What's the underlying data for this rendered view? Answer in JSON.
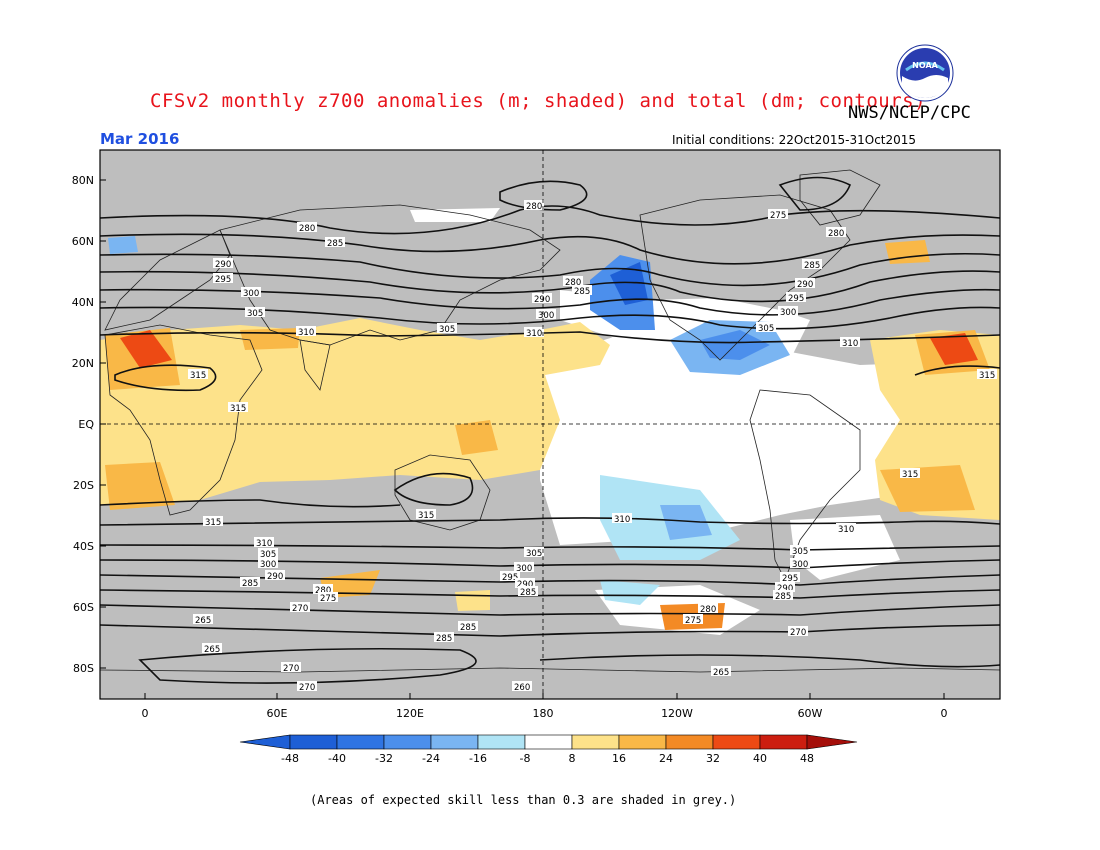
{
  "header": {
    "title": "CFSv2 monthly z700 anomalies (m; shaded) and total (dm; contours)",
    "org": "NWS/NCEP/CPC",
    "month": "Mar 2016",
    "init": "Initial conditions: 22Oct2015-31Oct2015",
    "logo_text": "NOAA"
  },
  "axes": {
    "lat_labels": [
      "80N",
      "60N",
      "40N",
      "20N",
      "EQ",
      "20S",
      "40S",
      "60S",
      "80S"
    ],
    "lon_labels": [
      "0",
      "60E",
      "120E",
      "180",
      "120W",
      "60W",
      "0"
    ]
  },
  "colorbar": {
    "labels": [
      "-48",
      "-40",
      "-32",
      "-24",
      "-16",
      "-8",
      "8",
      "16",
      "24",
      "32",
      "40",
      "48"
    ],
    "colors": [
      "#1e5fd6",
      "#2f74e3",
      "#4c8fec",
      "#7ab5f2",
      "#b0e4f5",
      "#ffffff",
      "#fde28a",
      "#f9b847",
      "#f38a25",
      "#ed4a14",
      "#cc1e10",
      "#a50f0a"
    ],
    "low_arrow": "#1e5fd6",
    "high_arrow": "#a50f0a"
  },
  "contour_labels": [
    {
      "text": "280"
    },
    {
      "text": "285"
    },
    {
      "text": "290"
    },
    {
      "text": "295"
    },
    {
      "text": "300"
    },
    {
      "text": "305"
    },
    {
      "text": "310"
    },
    {
      "text": "315"
    },
    {
      "text": "275"
    },
    {
      "text": "270"
    },
    {
      "text": "265"
    },
    {
      "text": "260"
    }
  ],
  "footnote": "(Areas of expected skill less than 0.3 are shaded in grey.)"
}
